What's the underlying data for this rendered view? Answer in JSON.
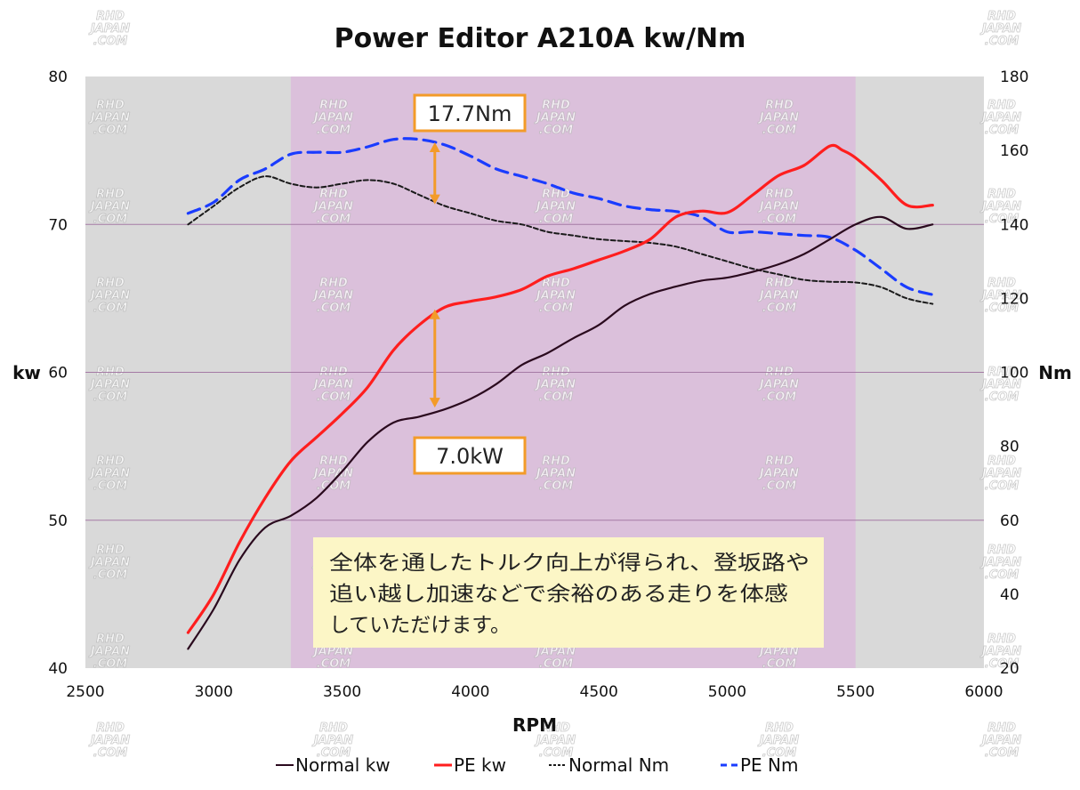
{
  "chart_data": {
    "type": "line",
    "title": "Power Editor A210A kw/Nm",
    "xlabel": "RPM",
    "ylabel_left": "kw",
    "ylabel_right": "Nm",
    "xlim": [
      2500,
      6000
    ],
    "ylim_left": [
      40,
      80
    ],
    "ylim_right": [
      20,
      180
    ],
    "x_ticks": [
      2500,
      3000,
      3500,
      4000,
      4500,
      5000,
      5500,
      6000
    ],
    "y_left_ticks": [
      40,
      50,
      60,
      70,
      80
    ],
    "y_right_ticks": [
      20,
      40,
      60,
      80,
      100,
      120,
      140,
      160,
      180
    ],
    "grid": "horizontal at 50, 60, 70 kw",
    "legend_position": "bottom",
    "highlight_band": [
      3300,
      5500
    ],
    "series": [
      {
        "name": "Normal kw",
        "axis": "left",
        "color": "#2a0a1e",
        "dash": "solid",
        "x": [
          2900,
          3000,
          3100,
          3200,
          3300,
          3400,
          3500,
          3600,
          3700,
          3800,
          3900,
          4000,
          4100,
          4200,
          4300,
          4400,
          4500,
          4600,
          4700,
          4800,
          4900,
          5000,
          5100,
          5200,
          5300,
          5400,
          5500,
          5600,
          5700,
          5800
        ],
        "values": [
          41.3,
          44.0,
          47.3,
          49.5,
          50.3,
          51.5,
          53.3,
          55.3,
          56.6,
          57.0,
          57.5,
          58.2,
          59.2,
          60.5,
          61.3,
          62.3,
          63.2,
          64.5,
          65.3,
          65.8,
          66.2,
          66.4,
          66.8,
          67.3,
          68.0,
          69.0,
          70.0,
          70.5,
          69.7,
          70.0
        ]
      },
      {
        "name": "PE kw",
        "axis": "left",
        "color": "#ff1e1e",
        "dash": "solid",
        "x": [
          2900,
          3000,
          3100,
          3200,
          3300,
          3400,
          3500,
          3600,
          3700,
          3800,
          3900,
          4000,
          4100,
          4200,
          4300,
          4400,
          4500,
          4600,
          4700,
          4800,
          4900,
          5000,
          5100,
          5200,
          5300,
          5400,
          5450,
          5500,
          5600,
          5700,
          5800
        ],
        "values": [
          42.4,
          45.0,
          48.5,
          51.5,
          54.0,
          55.6,
          57.2,
          59.0,
          61.5,
          63.2,
          64.4,
          64.8,
          65.1,
          65.6,
          66.5,
          67.0,
          67.6,
          68.2,
          69.0,
          70.5,
          70.9,
          70.8,
          72.0,
          73.3,
          74.0,
          75.3,
          75.0,
          74.5,
          73.0,
          71.3,
          71.3
        ]
      },
      {
        "name": "Normal Nm",
        "axis": "right",
        "color": "#1a1a1a",
        "dash": "short-dash",
        "x": [
          2900,
          3000,
          3100,
          3200,
          3300,
          3400,
          3500,
          3600,
          3700,
          3800,
          3900,
          4000,
          4100,
          4200,
          4300,
          4400,
          4500,
          4600,
          4700,
          4800,
          4900,
          5000,
          5100,
          5200,
          5300,
          5400,
          5500,
          5600,
          5700,
          5800
        ],
        "values": [
          140,
          145,
          150,
          153,
          151,
          150,
          151,
          152,
          151,
          148,
          145,
          143,
          141,
          140,
          138,
          137,
          136,
          135.5,
          135,
          134,
          132,
          130,
          128,
          126.5,
          125,
          124.5,
          124.3,
          123,
          120,
          118.5
        ]
      },
      {
        "name": "PE Nm",
        "axis": "right",
        "color": "#1a3cff",
        "dash": "long-dash",
        "x": [
          2900,
          3000,
          3100,
          3200,
          3300,
          3400,
          3500,
          3600,
          3700,
          3800,
          3900,
          4000,
          4100,
          4200,
          4300,
          4400,
          4500,
          4600,
          4700,
          4800,
          4900,
          5000,
          5100,
          5200,
          5300,
          5400,
          5500,
          5600,
          5700,
          5800
        ],
        "values": [
          143,
          146,
          152,
          155,
          159,
          159.5,
          159.5,
          161,
          163,
          163,
          161.5,
          158.5,
          155,
          153,
          151,
          148.5,
          147,
          145,
          144,
          143.5,
          142,
          138,
          138,
          137.5,
          137,
          136.5,
          133,
          128,
          123,
          121
        ]
      }
    ],
    "annotations": [
      {
        "text": "17.7Nm",
        "at_rpm": 3920,
        "from_nm": 144,
        "to_nm": 161.7
      },
      {
        "text": "7.0kW",
        "at_rpm": 3920,
        "from_kw": 57.5,
        "to_kw": 64.5
      }
    ],
    "note": [
      "全体を通したトルク向上が得られ、登坂路や",
      "追い越し加速などで余裕のある走りを体感",
      "していただけます。"
    ]
  },
  "watermark": [
    "RHD",
    "JAPAN",
    ".COM"
  ],
  "colors": {
    "plot_gray": "#d9d9d9",
    "band_purple": "#dbc0db",
    "grid_line": "#a57aa5",
    "arrow_orange": "#f39b29",
    "note_bg": "#fcf6c6"
  }
}
